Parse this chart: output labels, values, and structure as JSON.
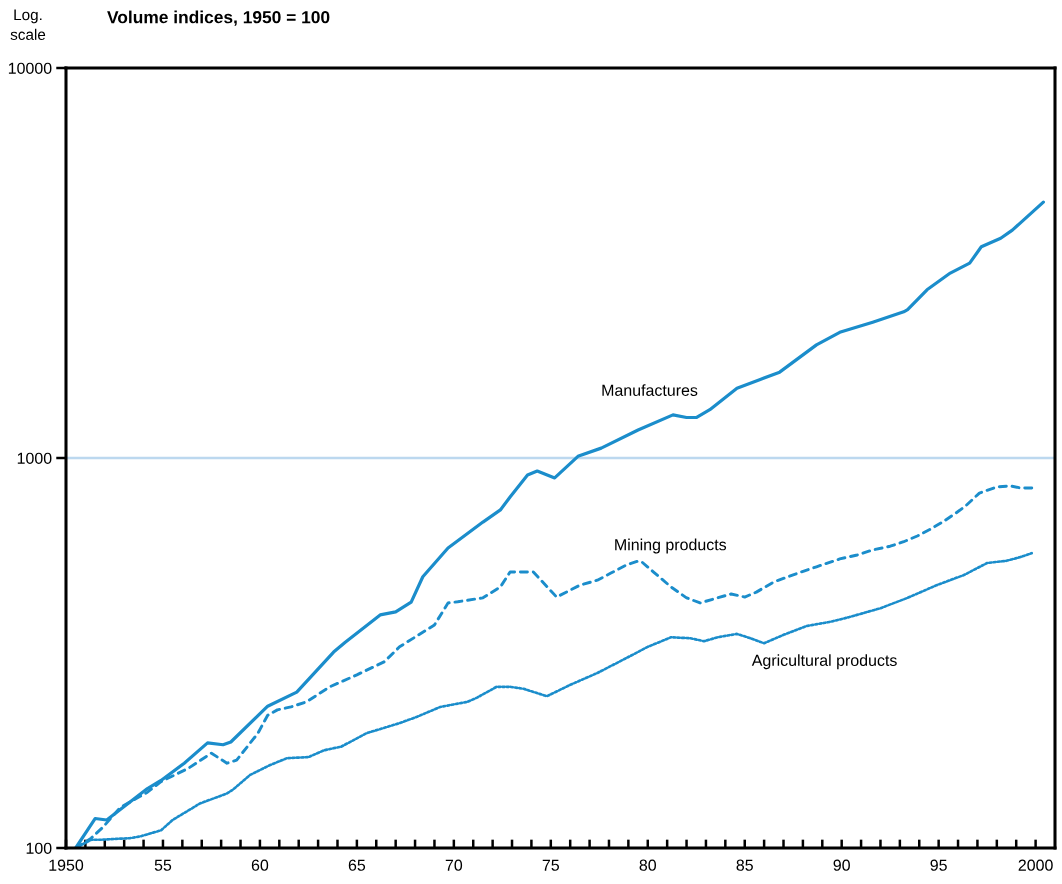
{
  "chart_data": {
    "type": "line",
    "title": "Volume indices, 1950 = 100",
    "ylabel": "Log.\nscale",
    "log": true,
    "legend": false,
    "xlim": [
      1950,
      2001
    ],
    "ylim": [
      100,
      10000
    ],
    "yticks": [
      100,
      1000,
      10000
    ],
    "ref_lines": [
      {
        "axis": "y",
        "value": 1000,
        "color": "#bcd8ef"
      }
    ],
    "xticks": [
      {
        "value": 1950,
        "label": "1950"
      },
      {
        "value": 1951,
        "label": null
      },
      {
        "value": 1952,
        "label": null
      },
      {
        "value": 1953,
        "label": null
      },
      {
        "value": 1954,
        "label": null
      },
      {
        "value": 1955,
        "label": "55"
      },
      {
        "value": 1956,
        "label": null
      },
      {
        "value": 1957,
        "label": null
      },
      {
        "value": 1958,
        "label": null
      },
      {
        "value": 1959,
        "label": null
      },
      {
        "value": 1960,
        "label": "60"
      },
      {
        "value": 1961,
        "label": null
      },
      {
        "value": 1962,
        "label": null
      },
      {
        "value": 1963,
        "label": null
      },
      {
        "value": 1964,
        "label": null
      },
      {
        "value": 1965,
        "label": "65"
      },
      {
        "value": 1966,
        "label": null
      },
      {
        "value": 1967,
        "label": null
      },
      {
        "value": 1968,
        "label": null
      },
      {
        "value": 1969,
        "label": null
      },
      {
        "value": 1970,
        "label": "70"
      },
      {
        "value": 1971,
        "label": null
      },
      {
        "value": 1972,
        "label": null
      },
      {
        "value": 1973,
        "label": null
      },
      {
        "value": 1974,
        "label": null
      },
      {
        "value": 1975,
        "label": "75"
      },
      {
        "value": 1976,
        "label": null
      },
      {
        "value": 1977,
        "label": null
      },
      {
        "value": 1978,
        "label": null
      },
      {
        "value": 1979,
        "label": null
      },
      {
        "value": 1980,
        "label": "80"
      },
      {
        "value": 1981,
        "label": null
      },
      {
        "value": 1982,
        "label": null
      },
      {
        "value": 1983,
        "label": null
      },
      {
        "value": 1984,
        "label": null
      },
      {
        "value": 1985,
        "label": "85"
      },
      {
        "value": 1986,
        "label": null
      },
      {
        "value": 1987,
        "label": null
      },
      {
        "value": 1988,
        "label": null
      },
      {
        "value": 1989,
        "label": null
      },
      {
        "value": 1990,
        "label": "90"
      },
      {
        "value": 1991,
        "label": null
      },
      {
        "value": 1992,
        "label": null
      },
      {
        "value": 1993,
        "label": null
      },
      {
        "value": 1994,
        "label": null
      },
      {
        "value": 1995,
        "label": "95"
      },
      {
        "value": 1996,
        "label": null
      },
      {
        "value": 1997,
        "label": null
      },
      {
        "value": 1998,
        "label": null
      },
      {
        "value": 1999,
        "label": null
      },
      {
        "value": 2000,
        "label": "2000"
      }
    ],
    "series": [
      {
        "name": "Manufactures",
        "color": "#1b8dcb",
        "line_style": "solid",
        "x": [
          1950.5,
          1951.5,
          1952.1,
          1954.2,
          1954.9,
          1956.1,
          1957.3,
          1958.1,
          1958.5,
          1960.4,
          1961.9,
          1963.8,
          1964.4,
          1966.2,
          1967.0,
          1967.8,
          1968.4,
          1969.7,
          1971.5,
          1972.4,
          1972.9,
          1973.8,
          1974.3,
          1975.2,
          1976.4,
          1977.6,
          1979.5,
          1981.3,
          1982.0,
          1982.5,
          1983.2,
          1984.6,
          1985.8,
          1986.8,
          1988.7,
          1989.9,
          1991.6,
          1993.2,
          1993.4,
          1994.4,
          1995.6,
          1996.6,
          1997.2,
          1998.2,
          1998.8,
          2000.4
        ],
        "values": [
          100,
          119,
          118,
          142,
          149,
          165,
          186,
          184,
          187,
          231,
          251,
          318,
          337,
          396,
          403,
          427,
          496,
          588,
          685,
          736,
          794,
          904,
          926,
          889,
          1010,
          1060,
          1180,
          1290,
          1270,
          1270,
          1330,
          1510,
          1590,
          1660,
          1950,
          2100,
          2230,
          2370,
          2400,
          2700,
          2980,
          3160,
          3480,
          3660,
          3840,
          4530
        ]
      },
      {
        "name": "Mining products",
        "color": "#1b8dcb",
        "line_style": "dashed",
        "x": [
          1950.5,
          1951.3,
          1951.9,
          1952.8,
          1954.2,
          1954.9,
          1956.3,
          1957.5,
          1958.3,
          1958.8,
          1959.9,
          1960.4,
          1960.9,
          1961.6,
          1962.4,
          1963.6,
          1965.0,
          1966.4,
          1967.2,
          1969.0,
          1969.7,
          1970.2,
          1971.5,
          1972.4,
          1972.9,
          1973.4,
          1974.1,
          1975.3,
          1976.5,
          1977.4,
          1978.1,
          1978.9,
          1979.5,
          1979.7,
          1980.3,
          1981.2,
          1982.0,
          1982.7,
          1983.6,
          1984.3,
          1985.0,
          1985.6,
          1986.5,
          1987.9,
          1988.7,
          1989.9,
          1990.8,
          1991.6,
          1992.5,
          1993.2,
          1993.9,
          1994.6,
          1995.2,
          1995.9,
          1996.4,
          1997.1,
          1998.0,
          1998.7,
          1999.2,
          2000.1
        ],
        "values": [
          100,
          106,
          113,
          127,
          139,
          148,
          160,
          175,
          165,
          168,
          197,
          219,
          226,
          230,
          237,
          259,
          278,
          300,
          328,
          373,
          425,
          428,
          438,
          467,
          510,
          510,
          510,
          440,
          472,
          486,
          507,
          532,
          544,
          541,
          510,
          467,
          438,
          425,
          438,
          448,
          440,
          453,
          481,
          510,
          526,
          551,
          564,
          581,
          594,
          610,
          631,
          658,
          685,
          723,
          754,
          813,
          843,
          848,
          838,
          838
        ]
      },
      {
        "name": "Agricultural products",
        "color": "#1b8dcb",
        "line_style": "dotted",
        "x": [
          1950.5,
          1951.3,
          1951.8,
          1953.3,
          1953.8,
          1954.9,
          1955.5,
          1956.9,
          1958.3,
          1958.6,
          1959.5,
          1960.5,
          1961.4,
          1962.5,
          1963.3,
          1964.2,
          1965.5,
          1967.2,
          1968.1,
          1969.3,
          1970.7,
          1971.2,
          1972.2,
          1972.9,
          1973.6,
          1974.8,
          1976.0,
          1977.4,
          1978.9,
          1980.0,
          1981.2,
          1982.2,
          1982.9,
          1983.6,
          1984.6,
          1985.3,
          1986.0,
          1987.0,
          1988.2,
          1989.4,
          1990.4,
          1992.0,
          1993.4,
          1994.9,
          1996.3,
          1997.5,
          1998.5,
          1999.2,
          1999.8
        ],
        "values": [
          100,
          105,
          105,
          106,
          107,
          111,
          118,
          130,
          138,
          141,
          154,
          163,
          170,
          171,
          178,
          182,
          197,
          209,
          217,
          230,
          237,
          243,
          259,
          259,
          256,
          245,
          262,
          281,
          307,
          328,
          347,
          345,
          339,
          347,
          354,
          345,
          335,
          352,
          371,
          380,
          391,
          412,
          438,
          472,
          501,
          538,
          545,
          557,
          570
        ]
      }
    ]
  }
}
